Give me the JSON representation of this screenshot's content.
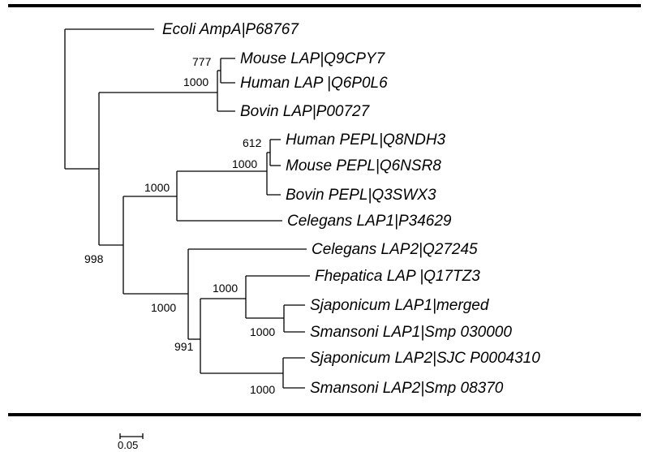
{
  "tree": {
    "taxa": [
      "Ecoli AmpA|P68767",
      "Mouse LAP|Q9CPY7",
      "Human LAP |Q6P0L6",
      "Bovin LAP|P00727",
      "Human PEPL|Q8NDH3",
      "Mouse PEPL|Q6NSR8",
      "Bovin PEPL|Q3SWX3",
      "Celegans LAP1|P34629",
      "Celegans LAP2|Q27245",
      "Fhepatica LAP |Q17TZ3",
      "Sjaponicum LAP1|merged",
      "Smansoni LAP1|Smp 030000",
      "Sjaponicum LAP2|SJC P0004310",
      "Smansoni LAP2|Smp 08370"
    ],
    "bootstrap": {
      "mouse_human_lap": "777",
      "lap_clade": "1000",
      "human_mouse_pepl": "612",
      "pepl_clade": "1000",
      "pepl_celegans1": "1000",
      "root_ingroup": "998",
      "lap2_clade": "1000",
      "fhep_sjap_sman": "1000",
      "sjap1_sman1": "1000",
      "trematode_clade": "991",
      "sjap2_sman2": "1000"
    },
    "scale_bar_label": "0.05"
  }
}
